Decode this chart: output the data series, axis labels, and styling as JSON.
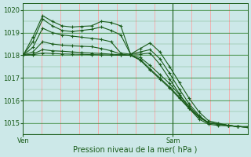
{
  "xlabel": "Pression niveau de la mer( hPa )",
  "ylim": [
    1014.5,
    1020.3
  ],
  "xlim": [
    0,
    36
  ],
  "yticks": [
    1015,
    1016,
    1017,
    1018,
    1019,
    1020
  ],
  "xtick_positions": [
    0,
    24
  ],
  "xtick_labels": [
    "Ven",
    "Sam"
  ],
  "vline_x": 24,
  "bg_color": "#cce8e8",
  "grid_color_h": "#3a8a3a",
  "grid_color_v": "#ff9999",
  "line_color": "#1a5c1a",
  "marker": "+",
  "series": [
    [
      1018.0,
      1018.8,
      1019.75,
      1019.5,
      1019.3,
      1019.25,
      1019.28,
      1019.3,
      1019.5,
      1019.45,
      1019.3,
      1018.05,
      1018.3,
      1018.55,
      1018.15,
      1017.5,
      1016.8,
      1016.1,
      1015.5,
      1015.1,
      1015.0,
      1014.9,
      1014.85,
      1014.85
    ],
    [
      1018.0,
      1018.6,
      1019.6,
      1019.3,
      1019.1,
      1019.05,
      1019.1,
      1019.15,
      1019.25,
      1019.1,
      1018.9,
      1018.05,
      1018.15,
      1018.25,
      1017.85,
      1017.2,
      1016.5,
      1015.85,
      1015.35,
      1015.0,
      1014.95,
      1014.9,
      1014.85,
      1014.82
    ],
    [
      1018.0,
      1018.35,
      1019.2,
      1019.0,
      1018.9,
      1018.85,
      1018.8,
      1018.75,
      1018.7,
      1018.6,
      1018.1,
      1018.05,
      1018.05,
      1018.1,
      1017.6,
      1016.95,
      1016.3,
      1015.65,
      1015.18,
      1014.95,
      1014.9,
      1014.88,
      1014.85,
      1014.82
    ],
    [
      1018.0,
      1018.15,
      1018.6,
      1018.5,
      1018.45,
      1018.42,
      1018.4,
      1018.38,
      1018.3,
      1018.2,
      1018.05,
      1018.0,
      1017.9,
      1017.55,
      1017.15,
      1016.75,
      1016.25,
      1015.75,
      1015.3,
      1015.02,
      1014.97,
      1014.9,
      1014.85,
      1014.82
    ],
    [
      1018.0,
      1018.05,
      1018.25,
      1018.2,
      1018.18,
      1018.15,
      1018.12,
      1018.1,
      1018.08,
      1018.05,
      1018.02,
      1018.0,
      1017.82,
      1017.4,
      1017.0,
      1016.6,
      1016.15,
      1015.68,
      1015.28,
      1015.02,
      1014.96,
      1014.9,
      1014.85,
      1014.82
    ],
    [
      1018.0,
      1018.02,
      1018.1,
      1018.08,
      1018.06,
      1018.05,
      1018.04,
      1018.03,
      1018.02,
      1018.01,
      1018.0,
      1018.0,
      1017.78,
      1017.35,
      1016.95,
      1016.55,
      1016.1,
      1015.64,
      1015.26,
      1015.0,
      1014.95,
      1014.9,
      1014.85,
      1014.82
    ]
  ]
}
